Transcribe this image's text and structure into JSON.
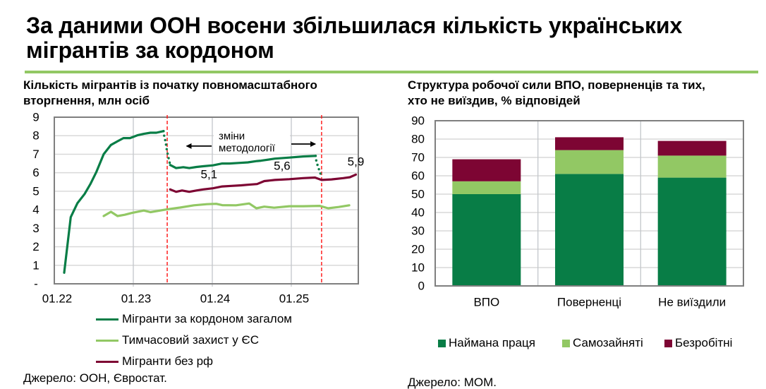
{
  "title": {
    "line1": "За даними ООН восени збільшилася кількість українських",
    "line2": "мігрантів за кордоном"
  },
  "colors": {
    "rule": "#92c864",
    "dark_green": "#087d46",
    "light_green": "#92c864",
    "maroon": "#7d0533",
    "red_dashed": "#ff1f1f"
  },
  "left_panel": {
    "subtitle_line1": "Кількість мігрантів із початку повномасштабного",
    "subtitle_line2": "вторгнення, млн осіб",
    "legend": [
      {
        "label": "Мігранти за кордоном загалом",
        "color": "#087d46"
      },
      {
        "label": "Тимчасовий захист у ЄС",
        "color": "#92c864"
      },
      {
        "label": "Мігранти без рф",
        "color": "#7d0533"
      }
    ],
    "source": "Джерело: ООН, Євростат."
  },
  "right_panel": {
    "subtitle_line1": "Структура робочої сили ВПО, поверненців та тих,",
    "subtitle_line2": "хто не виїздив, % відповідей",
    "legend": [
      {
        "label": "Наймана праця",
        "color": "#087d46"
      },
      {
        "label": "Самозайняті",
        "color": "#92c864"
      },
      {
        "label": "Безробітні",
        "color": "#7d0533"
      }
    ],
    "source": "Джерело: МОМ."
  },
  "chart_data": [
    {
      "type": "line",
      "title": "Кількість мігрантів із початку повномасштабного вторгнення, млн осіб",
      "xlabel": "",
      "ylabel": "млн осіб",
      "x_unit": "months since 01.22",
      "xlim": [
        0,
        46.2
      ],
      "ylim": [
        0,
        9
      ],
      "grid": true,
      "legend_position": "bottom",
      "xticks": [
        {
          "x": 0,
          "label": "01.22"
        },
        {
          "x": 12,
          "label": "01.23"
        },
        {
          "x": 24,
          "label": "01.24"
        },
        {
          "x": 36,
          "label": "01.25"
        }
      ],
      "yticks": [
        {
          "value": 0,
          "label": "-"
        },
        {
          "value": 1,
          "label": "1"
        },
        {
          "value": 2,
          "label": "2"
        },
        {
          "value": 3,
          "label": "3"
        },
        {
          "value": 4,
          "label": "4"
        },
        {
          "value": 5,
          "label": "5"
        },
        {
          "value": 6,
          "label": "6"
        },
        {
          "value": 7,
          "label": "7"
        },
        {
          "value": 8,
          "label": "8"
        },
        {
          "value": 9,
          "label": "9"
        }
      ],
      "vlines": [
        17.15,
        40.6
      ],
      "series": [
        {
          "name": "Тимчасовий захист у ЄС",
          "color": "#92c864",
          "segments": [
            [
              [
                7.5,
                3.66
              ],
              [
                8.6,
                3.89
              ],
              [
                9.6,
                3.66
              ],
              [
                10.7,
                3.73
              ],
              [
                11.8,
                3.83
              ],
              [
                13.6,
                3.96
              ],
              [
                14.6,
                3.87
              ],
              [
                17.1,
                4.02
              ],
              [
                19.1,
                4.12
              ],
              [
                21.2,
                4.24
              ],
              [
                23.2,
                4.3
              ],
              [
                24.6,
                4.32
              ],
              [
                25.5,
                4.25
              ],
              [
                27.6,
                4.24
              ],
              [
                29.6,
                4.34
              ],
              [
                30.7,
                4.08
              ],
              [
                31.9,
                4.17
              ],
              [
                33.4,
                4.11
              ],
              [
                35.7,
                4.19
              ],
              [
                37.8,
                4.19
              ],
              [
                40.3,
                4.21
              ],
              [
                41.6,
                4.08
              ],
              [
                43.2,
                4.15
              ],
              [
                44.8,
                4.24
              ]
            ]
          ],
          "dotted": []
        },
        {
          "name": "Мігранти без рф",
          "color": "#7d0533",
          "segments": [
            [
              [
                17.6,
                5.1
              ],
              [
                18.5,
                4.97
              ],
              [
                19.4,
                5.04
              ],
              [
                20.5,
                4.97
              ],
              [
                21.6,
                5.04
              ],
              [
                22.6,
                5.1
              ],
              [
                24.1,
                5.16
              ],
              [
                25.5,
                5.26
              ],
              [
                26.9,
                5.29
              ],
              [
                28.4,
                5.32
              ],
              [
                29.4,
                5.35
              ],
              [
                30.8,
                5.39
              ],
              [
                31.9,
                5.55
              ],
              [
                33.5,
                5.61
              ],
              [
                35.7,
                5.65
              ],
              [
                37.8,
                5.71
              ],
              [
                39.6,
                5.74
              ],
              [
                40.6,
                5.61
              ],
              [
                42.1,
                5.64
              ],
              [
                43.9,
                5.71
              ],
              [
                44.9,
                5.76
              ],
              [
                45.8,
                5.9
              ]
            ]
          ],
          "dotted": []
        },
        {
          "name": "Мігранти за кордоном загалом",
          "color": "#087d46",
          "segments": [
            [
              [
                1.5,
                0.6
              ],
              [
                2.5,
                3.6
              ],
              [
                3.5,
                4.35
              ],
              [
                4.6,
                4.85
              ],
              [
                5.5,
                5.4
              ],
              [
                6.4,
                6.05
              ],
              [
                7.5,
                7.0
              ],
              [
                8.6,
                7.5
              ],
              [
                9.6,
                7.7
              ],
              [
                10.5,
                7.87
              ],
              [
                11.5,
                7.87
              ],
              [
                12.7,
                8.03
              ],
              [
                13.6,
                8.1
              ],
              [
                14.6,
                8.16
              ],
              [
                15.5,
                8.16
              ],
              [
                16.6,
                8.25
              ]
            ],
            [
              [
                17.6,
                6.42
              ],
              [
                18.5,
                6.25
              ],
              [
                19.6,
                6.3
              ],
              [
                20.5,
                6.25
              ],
              [
                21.6,
                6.31
              ],
              [
                22.6,
                6.35
              ],
              [
                24.1,
                6.4
              ],
              [
                25.5,
                6.5
              ],
              [
                26.6,
                6.5
              ],
              [
                28.0,
                6.53
              ],
              [
                29.4,
                6.56
              ],
              [
                30.8,
                6.63
              ],
              [
                31.4,
                6.65
              ],
              [
                33.5,
                6.76
              ],
              [
                35.7,
                6.82
              ],
              [
                37.8,
                6.88
              ],
              [
                39.7,
                6.91
              ]
            ]
          ],
          "dotted": [
            [
              [
                16.6,
                8.25
              ],
              [
                16.7,
                7.96
              ],
              [
                16.9,
                7.68
              ],
              [
                17.1,
                7.2
              ],
              [
                17.3,
                6.88
              ],
              [
                17.5,
                6.59
              ],
              [
                17.6,
                6.42
              ]
            ],
            [
              [
                39.7,
                6.91
              ],
              [
                39.8,
                6.62
              ],
              [
                40.0,
                6.4
              ],
              [
                40.2,
                6.18
              ],
              [
                40.5,
                5.88
              ]
            ]
          ]
        }
      ],
      "annotations": [
        {
          "text": "5,1",
          "x": 23.5,
          "y": 5.92
        },
        {
          "text": "5,6",
          "x": 34.6,
          "y": 6.37
        },
        {
          "text": "5,9",
          "x": 45.8,
          "y": 6.6
        }
      ],
      "methodology_note": {
        "lines": [
          "зміни",
          "методології"
        ],
        "arrows": [
          {
            "from": 23.9,
            "to": 20.1,
            "y": 7.44
          },
          {
            "from": 36.0,
            "to": 39.65,
            "y": 7.55
          }
        ]
      }
    },
    {
      "type": "bar",
      "stacked": true,
      "title": "Структура робочої сили ВПО, поверненців та тих, хто не виїздив, % відповідей",
      "xlabel": "",
      "ylabel": "% відповідей",
      "ylim": [
        0,
        90
      ],
      "grid": true,
      "legend_position": "bottom",
      "yticks": [
        "0",
        "10",
        "20",
        "30",
        "40",
        "50",
        "60",
        "70",
        "80",
        "90"
      ],
      "categories": [
        "ВПО",
        "Поверненці",
        "Не виїздили"
      ],
      "series": [
        {
          "name": "Наймана праця",
          "color": "#087d46",
          "values": [
            50,
            61,
            59
          ]
        },
        {
          "name": "Самозайняті",
          "color": "#92c864",
          "values": [
            7,
            13,
            12
          ]
        },
        {
          "name": "Безробітні",
          "color": "#7d0533",
          "values": [
            12,
            7,
            8
          ]
        }
      ]
    }
  ]
}
